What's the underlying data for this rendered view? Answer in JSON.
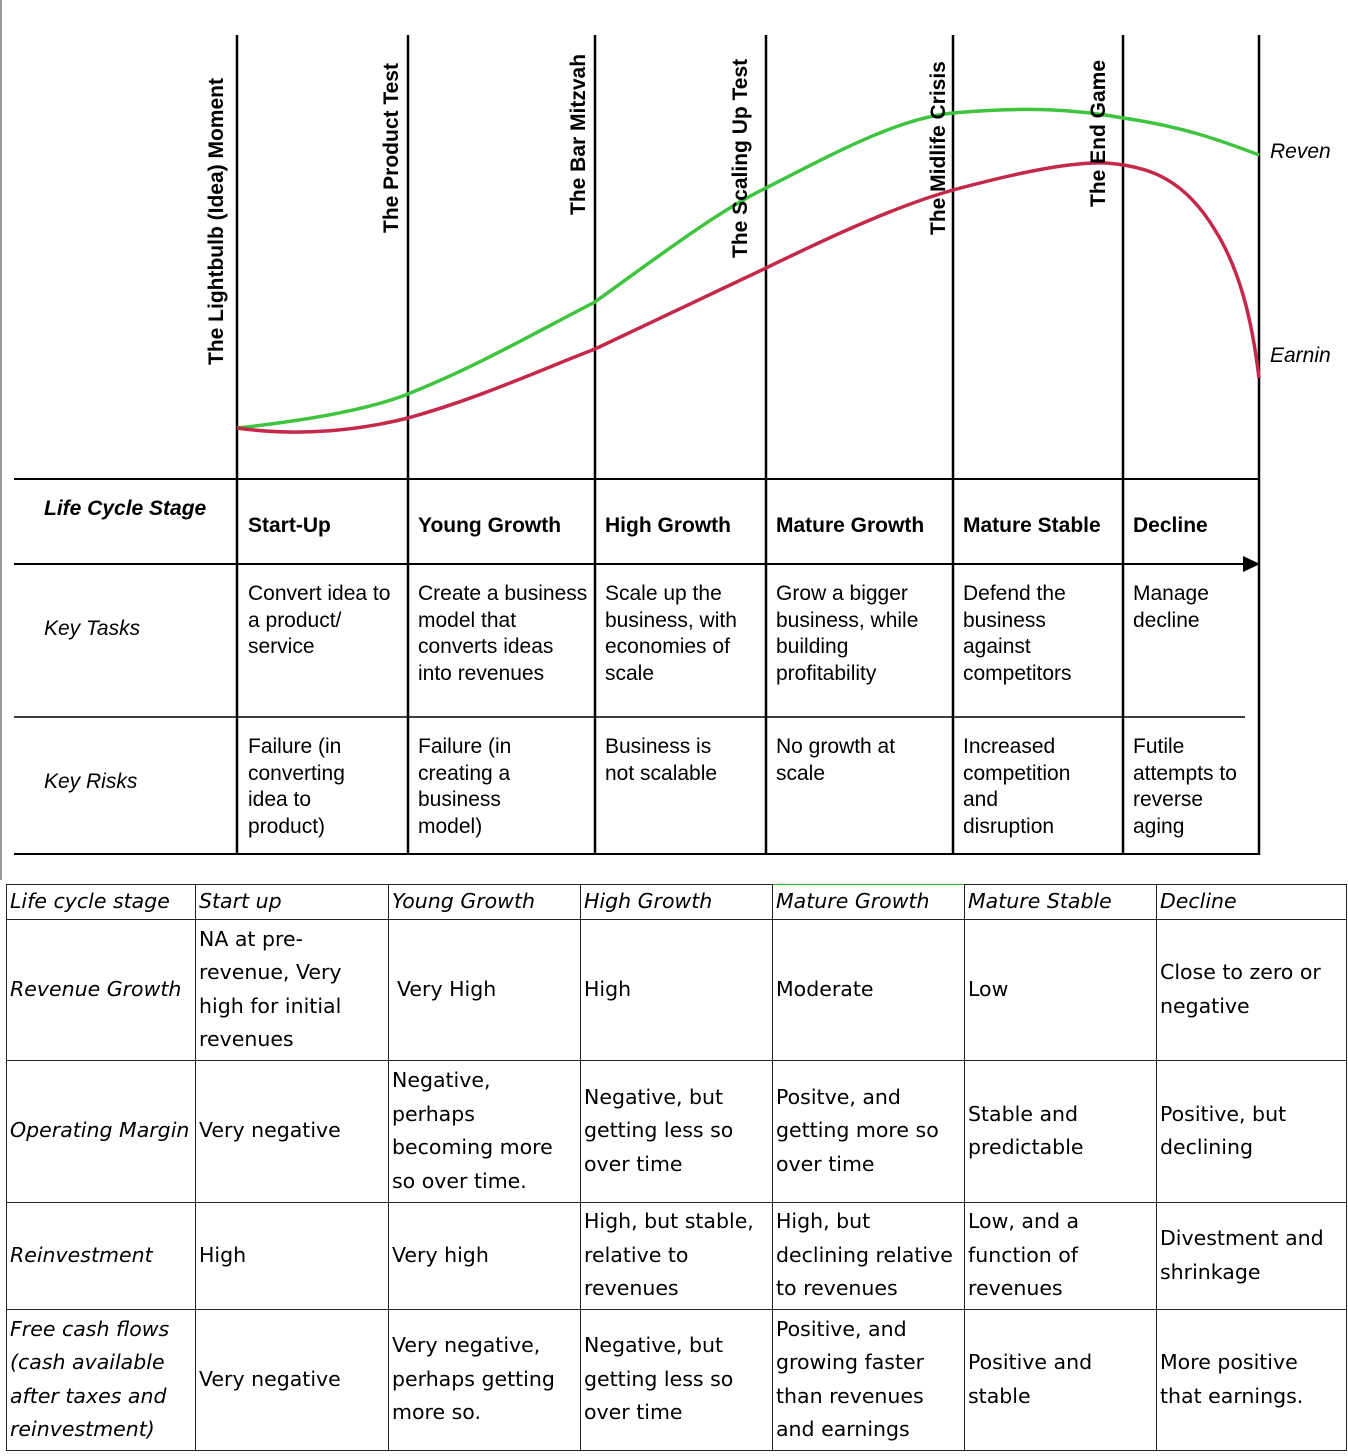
{
  "diagram": {
    "milestones": [
      "The Lightbulb (Idea) Moment",
      "The Product Test",
      "The Bar Mitzvah",
      "The Scaling Up Test",
      "The Midlife Crisis",
      "The End Game"
    ],
    "curve_labels": {
      "revenue": "Reven",
      "earnings": "Earnin"
    },
    "curve_colors": {
      "revenue": "#3ec43e",
      "earnings": "#c4284a"
    },
    "row_labels": {
      "stage": "Life Cycle Stage",
      "tasks": "Key Tasks",
      "risks": "Key Risks"
    },
    "stages": [
      {
        "name": "Start-Up",
        "task": "Convert idea to a product/ service",
        "risk": "Failure (in converting idea to product)"
      },
      {
        "name": "Young Growth",
        "task": "Create a business model that converts ideas into revenues",
        "risk": "Failure (in creating a business model)"
      },
      {
        "name": "High Growth",
        "task": "Scale up the business, with economies of scale",
        "risk": "Business is not scalable"
      },
      {
        "name": "Mature Growth",
        "task": "Grow a bigger business, while building profitability",
        "risk": "No growth at scale"
      },
      {
        "name": "Mature Stable",
        "task": "Defend the business against competitors",
        "risk": "Increased competition and disruption"
      },
      {
        "name": "Decline",
        "task": "Manage decline",
        "risk": "Futile attempts to reverse aging"
      }
    ]
  },
  "table": {
    "corner": "Life cycle stage",
    "columns": [
      "Start up",
      "Young Growth",
      "High Growth",
      "Mature Growth",
      "Mature Stable",
      "Decline"
    ],
    "rows": [
      {
        "label": "Revenue Growth",
        "cells": [
          "NA at pre-revenue, Very high for initial revenues",
          "Very High",
          "High",
          "Moderate",
          "Low",
          "Close to zero or negative"
        ]
      },
      {
        "label": "Operating Margin",
        "cells": [
          "Very negative",
          "Negative, perhaps becoming more so over time.",
          "Negative, but getting less so over time",
          "Positve, and getting more so over time",
          "Stable and predictable",
          "Positive, but declining"
        ]
      },
      {
        "label": "Reinvestment",
        "cells": [
          "High",
          "Very high",
          "High, but stable, relative to revenues",
          "High, but declining relative to revenues",
          "Low, and a function of revenues",
          "Divestment and shrinkage"
        ]
      },
      {
        "label": "Free cash flows (cash available after taxes and reinvestment)",
        "cells": [
          "Very negative",
          "Very negative, perhaps getting more so.",
          "Negative, but getting less so over time",
          "Positive, and growing faster than revenues and earnings",
          "Positive and stable",
          "More positive that earnings."
        ]
      }
    ]
  }
}
